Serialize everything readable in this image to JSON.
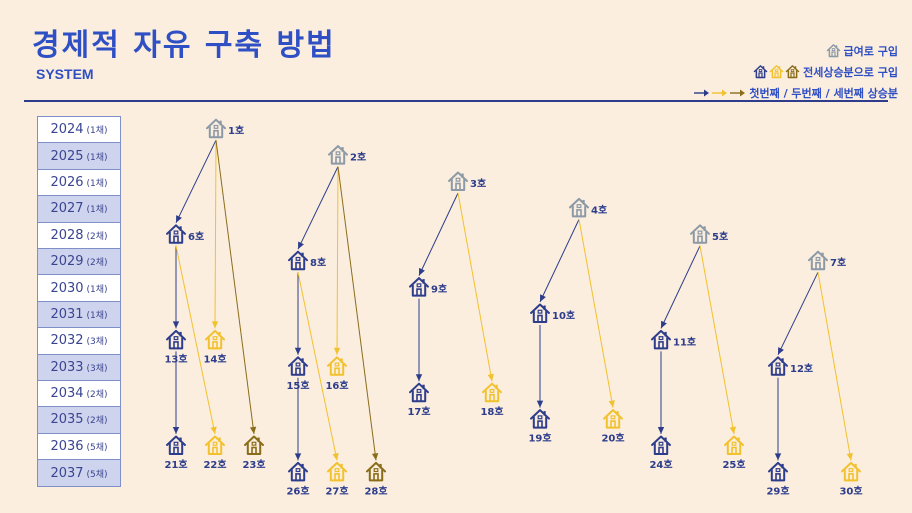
{
  "header": {
    "title": "경제적 자유 구축 방법",
    "subtitle": "SYSTEM"
  },
  "legend": {
    "item1": "급여로 구입",
    "item2": "전세상승분으로 구입",
    "item3": "첫번째 / 두번째 / 세번째 상승분"
  },
  "colors": {
    "background": "#fbeede",
    "title": "#2f4fc4",
    "house_salary": "#8c99a6",
    "house_first": "#2d3d8c",
    "house_second": "#f2c12e",
    "house_third": "#8a6d1a",
    "arrow_first": "#2d3d8c",
    "arrow_second": "#f2c12e",
    "arrow_third": "#8a6d1a"
  },
  "years": [
    {
      "year": "2024",
      "count": "(1채)"
    },
    {
      "year": "2025",
      "count": "(1채)"
    },
    {
      "year": "2026",
      "count": "(1채)"
    },
    {
      "year": "2027",
      "count": "(1채)"
    },
    {
      "year": "2028",
      "count": "(2채)"
    },
    {
      "year": "2029",
      "count": "(2채)"
    },
    {
      "year": "2030",
      "count": "(1채)"
    },
    {
      "year": "2031",
      "count": "(1채)"
    },
    {
      "year": "2032",
      "count": "(3채)"
    },
    {
      "year": "2033",
      "count": "(3채)"
    },
    {
      "year": "2034",
      "count": "(2채)"
    },
    {
      "year": "2035",
      "count": "(2채)"
    },
    {
      "year": "2036",
      "count": "(5채)"
    },
    {
      "year": "2037",
      "count": "(5채)"
    }
  ],
  "houses": [
    {
      "id": 1,
      "label": "1호",
      "year": "2024",
      "source": "salary"
    },
    {
      "id": 2,
      "label": "2호",
      "year": "2025",
      "source": "salary"
    },
    {
      "id": 3,
      "label": "3호",
      "year": "2026",
      "source": "salary"
    },
    {
      "id": 4,
      "label": "4호",
      "year": "2027",
      "source": "salary"
    },
    {
      "id": 5,
      "label": "5호",
      "year": "2028",
      "source": "salary"
    },
    {
      "id": 6,
      "label": "6호",
      "year": "2028",
      "source": "first"
    },
    {
      "id": 7,
      "label": "7호",
      "year": "2029",
      "source": "salary"
    },
    {
      "id": 8,
      "label": "8호",
      "year": "2029",
      "source": "first"
    },
    {
      "id": 9,
      "label": "9호",
      "year": "2030",
      "source": "first"
    },
    {
      "id": 10,
      "label": "10호",
      "year": "2031",
      "source": "first"
    },
    {
      "id": 11,
      "label": "11호",
      "year": "2032",
      "source": "first"
    },
    {
      "id": 12,
      "label": "12호",
      "year": "2033",
      "source": "first"
    },
    {
      "id": 13,
      "label": "13호",
      "year": "2032",
      "source": "first"
    },
    {
      "id": 14,
      "label": "14호",
      "year": "2032",
      "source": "second"
    },
    {
      "id": 15,
      "label": "15호",
      "year": "2033",
      "source": "first"
    },
    {
      "id": 16,
      "label": "16호",
      "year": "2033",
      "source": "second"
    },
    {
      "id": 17,
      "label": "17호",
      "year": "2034",
      "source": "first"
    },
    {
      "id": 18,
      "label": "18호",
      "year": "2034",
      "source": "second"
    },
    {
      "id": 19,
      "label": "19호",
      "year": "2035",
      "source": "first"
    },
    {
      "id": 20,
      "label": "20호",
      "year": "2035",
      "source": "second"
    },
    {
      "id": 21,
      "label": "21호",
      "year": "2036",
      "source": "first"
    },
    {
      "id": 22,
      "label": "22호",
      "year": "2036",
      "source": "second"
    },
    {
      "id": 23,
      "label": "23호",
      "year": "2036",
      "source": "third"
    },
    {
      "id": 24,
      "label": "24호",
      "year": "2036",
      "source": "first"
    },
    {
      "id": 25,
      "label": "25호",
      "year": "2036",
      "source": "second"
    },
    {
      "id": 26,
      "label": "26호",
      "year": "2037",
      "source": "first"
    },
    {
      "id": 27,
      "label": "27호",
      "year": "2037",
      "source": "second"
    },
    {
      "id": 28,
      "label": "28호",
      "year": "2037",
      "source": "third"
    },
    {
      "id": 29,
      "label": "29호",
      "year": "2037",
      "source": "first"
    },
    {
      "id": 30,
      "label": "30호",
      "year": "2037",
      "source": "second"
    }
  ],
  "edges": [
    {
      "from": 1,
      "to": 6,
      "kind": "first"
    },
    {
      "from": 1,
      "to": 14,
      "kind": "second"
    },
    {
      "from": 1,
      "to": 23,
      "kind": "third"
    },
    {
      "from": 6,
      "to": 13,
      "kind": "first"
    },
    {
      "from": 6,
      "to": 22,
      "kind": "second"
    },
    {
      "from": 13,
      "to": 21,
      "kind": "first"
    },
    {
      "from": 2,
      "to": 8,
      "kind": "first"
    },
    {
      "from": 2,
      "to": 16,
      "kind": "second"
    },
    {
      "from": 2,
      "to": 28,
      "kind": "third"
    },
    {
      "from": 8,
      "to": 15,
      "kind": "first"
    },
    {
      "from": 8,
      "to": 27,
      "kind": "second"
    },
    {
      "from": 15,
      "to": 26,
      "kind": "first"
    },
    {
      "from": 3,
      "to": 9,
      "kind": "first"
    },
    {
      "from": 3,
      "to": 18,
      "kind": "second"
    },
    {
      "from": 9,
      "to": 17,
      "kind": "first"
    },
    {
      "from": 4,
      "to": 10,
      "kind": "first"
    },
    {
      "from": 4,
      "to": 20,
      "kind": "second"
    },
    {
      "from": 10,
      "to": 19,
      "kind": "first"
    },
    {
      "from": 5,
      "to": 11,
      "kind": "first"
    },
    {
      "from": 5,
      "to": 25,
      "kind": "second"
    },
    {
      "from": 11,
      "to": 24,
      "kind": "first"
    },
    {
      "from": 7,
      "to": 12,
      "kind": "first"
    },
    {
      "from": 7,
      "to": 30,
      "kind": "second"
    },
    {
      "from": 12,
      "to": 29,
      "kind": "first"
    }
  ]
}
